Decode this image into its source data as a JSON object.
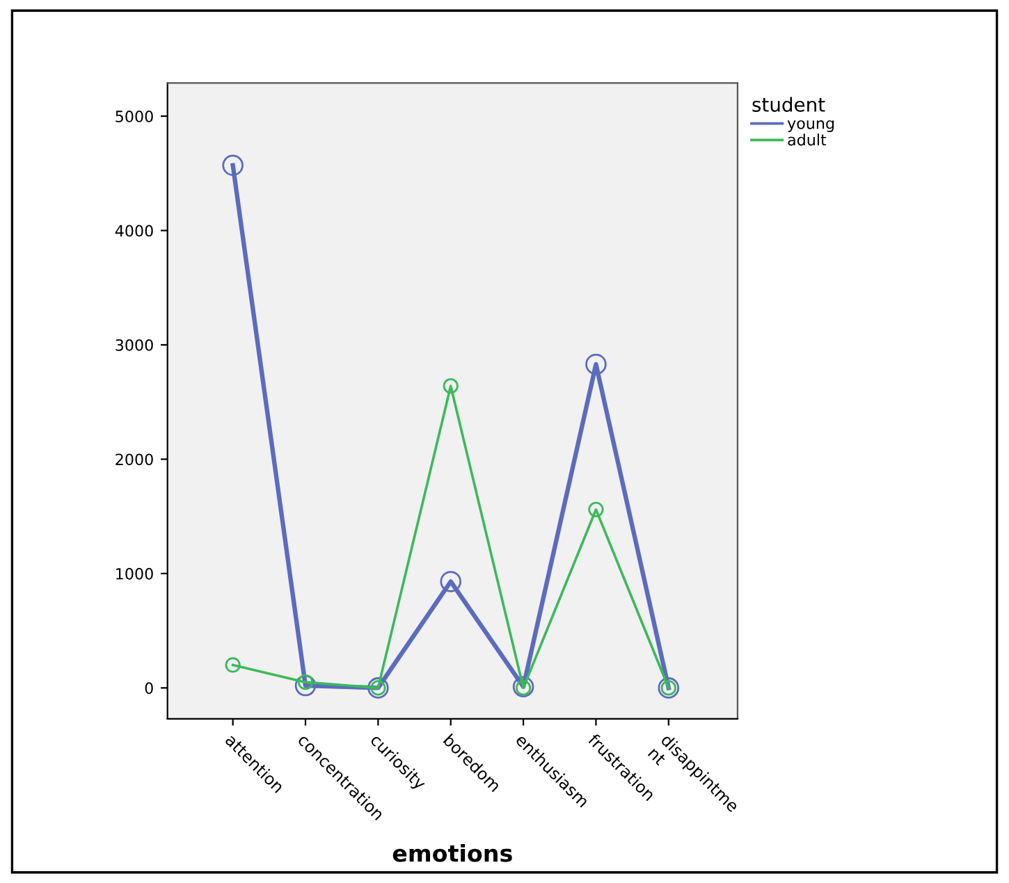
{
  "chart_data": {
    "type": "line",
    "categories": [
      "attention",
      "concentration",
      "curiosity",
      "boredom",
      "enthusiasm",
      "frustration",
      "disappintme\nnt"
    ],
    "series": [
      {
        "name": "young",
        "color": "#5b6bbf",
        "values": [
          4570,
          20,
          0,
          930,
          10,
          2830,
          0
        ]
      },
      {
        "name": "adult",
        "color": "#3cb95a",
        "values": [
          200,
          50,
          0,
          2640,
          0,
          1560,
          0
        ]
      }
    ],
    "xlabel": "emotions",
    "legend_title": "student",
    "legend": "top right",
    "ylim": [
      -270,
      5290
    ],
    "yticks": [
      0,
      1000,
      2000,
      3000,
      4000,
      5000
    ],
    "marker": "circle",
    "line_style": "solid",
    "grid": false
  }
}
